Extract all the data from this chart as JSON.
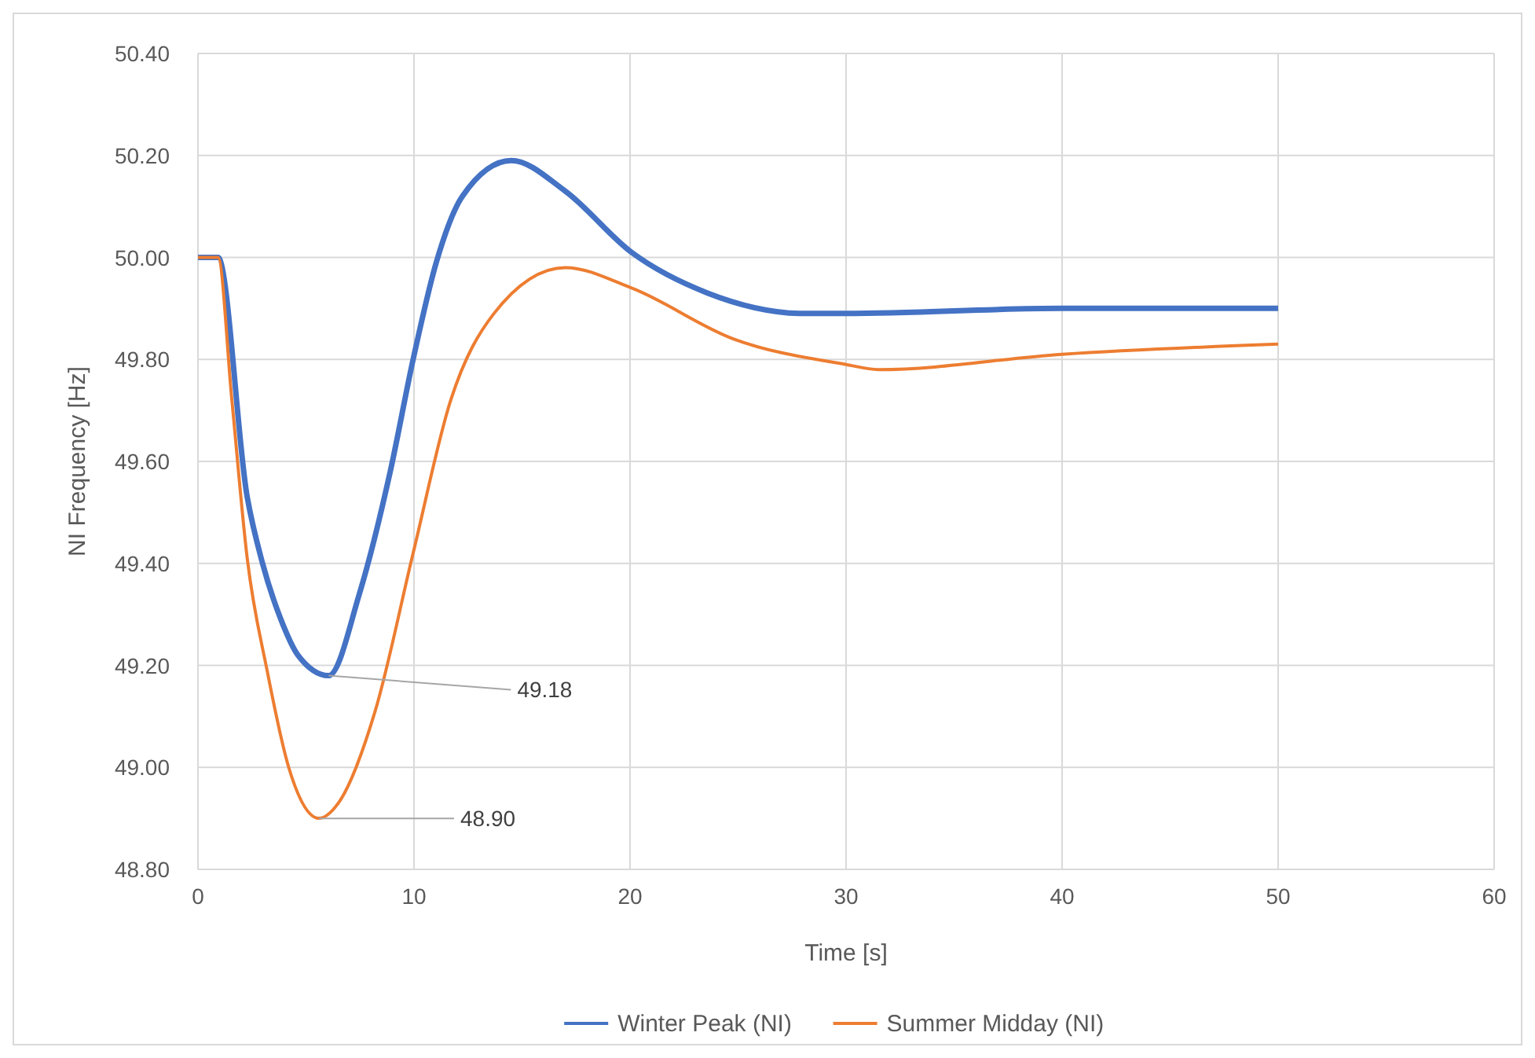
{
  "chart_data": {
    "type": "line",
    "xlabel": "Time [s]",
    "ylabel": "NI Frequency [Hz]",
    "xlim": [
      0,
      60
    ],
    "xticks": [
      0,
      10,
      20,
      30,
      40,
      50,
      60
    ],
    "ylim": [
      48.8,
      50.4
    ],
    "yticks": [
      {
        "value": 48.8,
        "label": "48.80"
      },
      {
        "value": 49,
        "label": "49.00"
      },
      {
        "value": 49.2,
        "label": "49.20"
      },
      {
        "value": 49.4,
        "label": "49.40"
      },
      {
        "value": 49.6,
        "label": "49.60"
      },
      {
        "value": 49.8,
        "label": "49.80"
      },
      {
        "value": 50,
        "label": "50.00"
      },
      {
        "value": 50.2,
        "label": "50.20"
      },
      {
        "value": 50.4,
        "label": "50.40"
      }
    ],
    "grid": true,
    "legend": "bottom",
    "marker": "none",
    "line_style": "solid",
    "series": [
      {
        "name": "Winter Peak (NI)",
        "color": "#4472c4",
        "x": [
          0,
          0.93,
          2.28,
          2.99,
          3.84,
          4.63,
          6.05,
          7.47,
          8.9,
          9.96,
          11.03,
          12.24,
          14.5,
          17,
          20.07,
          23.6,
          28.1,
          30,
          40,
          50
        ],
        "values": [
          50,
          50,
          49.53,
          49.4,
          49.29,
          49.22,
          49.18,
          49.34,
          49.58,
          49.8,
          49.99,
          50.12,
          50.19,
          50.13,
          50.01,
          49.93,
          49.89,
          49.89,
          49.9,
          49.9
        ]
      },
      {
        "name": "Summer Midday (NI)",
        "color": "#ed7d31",
        "x": [
          0,
          0.93,
          1.57,
          2.28,
          3.2,
          4.2,
          5.6,
          6.5,
          8.2,
          9.96,
          11.7,
          13.7,
          17,
          20.07,
          24.8,
          30,
          31.5,
          40,
          50
        ],
        "values": [
          50,
          50,
          49.72,
          49.41,
          49.19,
          49,
          48.9,
          48.93,
          49.11,
          49.42,
          49.72,
          49.89,
          49.98,
          49.94,
          49.84,
          49.79,
          49.78,
          49.81,
          49.83
        ]
      }
    ],
    "annotations": [
      {
        "text": "49.18",
        "x": 6.05,
        "y": 49.18
      },
      {
        "text": "48.90",
        "x": 5.6,
        "y": 48.9
      }
    ]
  }
}
